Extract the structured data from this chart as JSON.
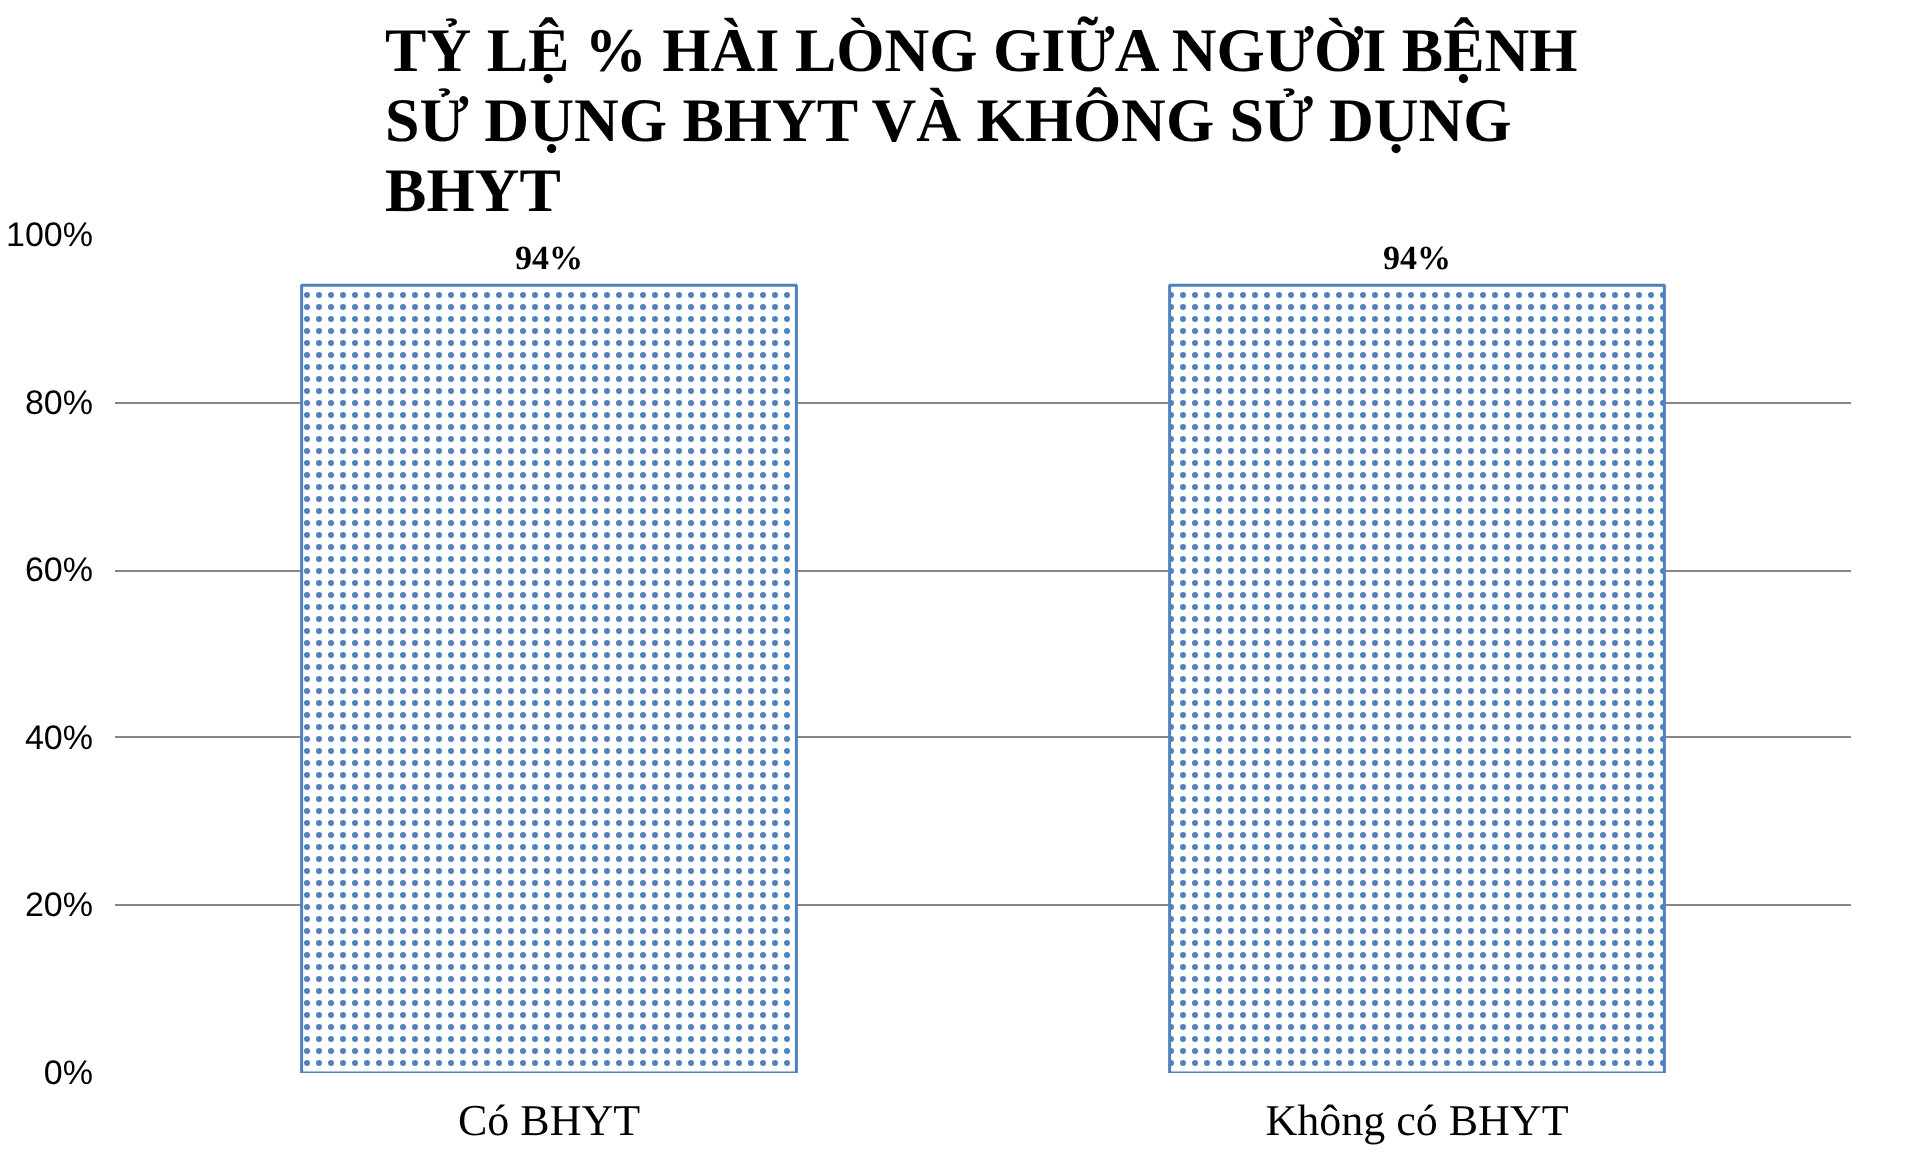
{
  "chart_data": {
    "type": "bar",
    "title": "TỶ LỆ % HÀI LÒNG GIỮA NGƯỜI BỆNH\nSỬ DỤNG BHYT VÀ KHÔNG SỬ DỤNG\nBHYT",
    "categories": [
      "Có BHYT",
      "Không có BHYT"
    ],
    "values": [
      94,
      94
    ],
    "value_labels": [
      "94%",
      "94%"
    ],
    "color": "#4f81bd",
    "ylim": [
      0,
      100
    ],
    "yticks": [
      {
        "value": 0,
        "label": "0%"
      },
      {
        "value": 20,
        "label": "20%"
      },
      {
        "value": 40,
        "label": "40%"
      },
      {
        "value": 60,
        "label": "60%"
      },
      {
        "value": 80,
        "label": "80%"
      },
      {
        "value": 100,
        "label": "100%"
      }
    ],
    "grid": "y"
  }
}
